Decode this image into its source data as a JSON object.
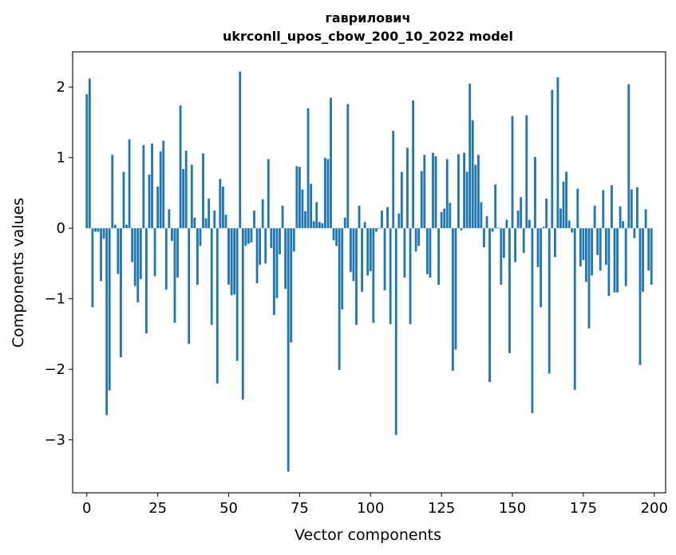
{
  "chart_data": {
    "type": "bar",
    "title": "гаврилович",
    "subtitle": "ukrconll_upos_cbow_200_10_2022 model",
    "xlabel": "Vector components",
    "ylabel": "Components values",
    "xlim": [
      -5,
      204
    ],
    "ylim": [
      -3.75,
      2.5
    ],
    "xticks": [
      0,
      25,
      50,
      75,
      100,
      125,
      150,
      175,
      200
    ],
    "yticks": [
      -3,
      -2,
      -1,
      0,
      1,
      2
    ],
    "ytick_labels": [
      "−3",
      "−2",
      "−1",
      "0",
      "1",
      "2"
    ],
    "bar_color": "#1f77b4",
    "grid": false,
    "values": [
      1.9,
      2.12,
      -1.12,
      -0.05,
      -0.05,
      -0.75,
      -0.15,
      -2.65,
      -2.3,
      1.04,
      0.05,
      -0.65,
      -1.83,
      0.8,
      0.05,
      1.26,
      -0.48,
      -0.82,
      -1.05,
      -0.72,
      1.18,
      -1.49,
      0.76,
      1.2,
      -0.68,
      0.59,
      1.09,
      1.24,
      -0.87,
      0.27,
      -0.18,
      -1.34,
      -0.7,
      1.74,
      0.84,
      1.1,
      -1.64,
      0.9,
      0.15,
      -0.8,
      -0.25,
      1.06,
      0.14,
      0.42,
      -1.37,
      0.25,
      -2.2,
      0.7,
      0.59,
      0.19,
      -0.8,
      -0.95,
      -0.94,
      -1.88,
      2.22,
      -2.43,
      -0.25,
      -0.22,
      -0.2,
      0.25,
      -0.78,
      -0.52,
      0.41,
      -0.5,
      0.98,
      -0.28,
      -1.23,
      -0.99,
      -0.37,
      0.32,
      -0.86,
      -3.45,
      -1.62,
      -0.33,
      0.88,
      0.87,
      0.55,
      0.24,
      1.7,
      0.63,
      0.1,
      0.37,
      0.09,
      0.07,
      1.0,
      0.98,
      1.85,
      -0.17,
      -0.25,
      -2.01,
      -1.15,
      0.15,
      1.76,
      -0.62,
      -0.75,
      -1.37,
      0.32,
      -0.9,
      0.09,
      -0.67,
      -0.61,
      -1.34,
      -0.05,
      -0.01,
      0.25,
      -0.88,
      0.3,
      -1.36,
      1.38,
      -2.93,
      0.21,
      0.8,
      -0.7,
      1.14,
      -1.36,
      1.81,
      -0.33,
      -0.25,
      0.81,
      1.04,
      -0.65,
      -0.7,
      1.07,
      1.02,
      -0.8,
      0.23,
      0.28,
      0.98,
      0.36,
      -2.02,
      -1.72,
      1.05,
      -0.03,
      1.07,
      0.8,
      2.05,
      1.53,
      0.9,
      1.04,
      0.37,
      -0.27,
      0.17,
      -2.18,
      -0.05,
      0.62,
      0.01,
      -0.8,
      -0.42,
      0.12,
      -1.77,
      1.59,
      -0.48,
      0.25,
      0.44,
      -0.35,
      1.6,
      0.12,
      -2.62,
      1.01,
      -0.55,
      -1.12,
      0.02,
      0.42,
      -2.06,
      1.96,
      -0.41,
      2.14,
      0.28,
      0.66,
      0.8,
      0.11,
      -0.06,
      -2.29,
      0.56,
      -0.54,
      -0.45,
      -0.76,
      -1.42,
      -0.67,
      0.32,
      -0.38,
      -0.6,
      0.54,
      -0.52,
      -0.96,
      0.61,
      -0.91,
      -0.91,
      0.31,
      0.1,
      -0.82,
      2.04,
      0.55,
      -0.14,
      0.58,
      -1.94,
      -0.9,
      0.27,
      -0.6,
      -0.8
    ]
  }
}
